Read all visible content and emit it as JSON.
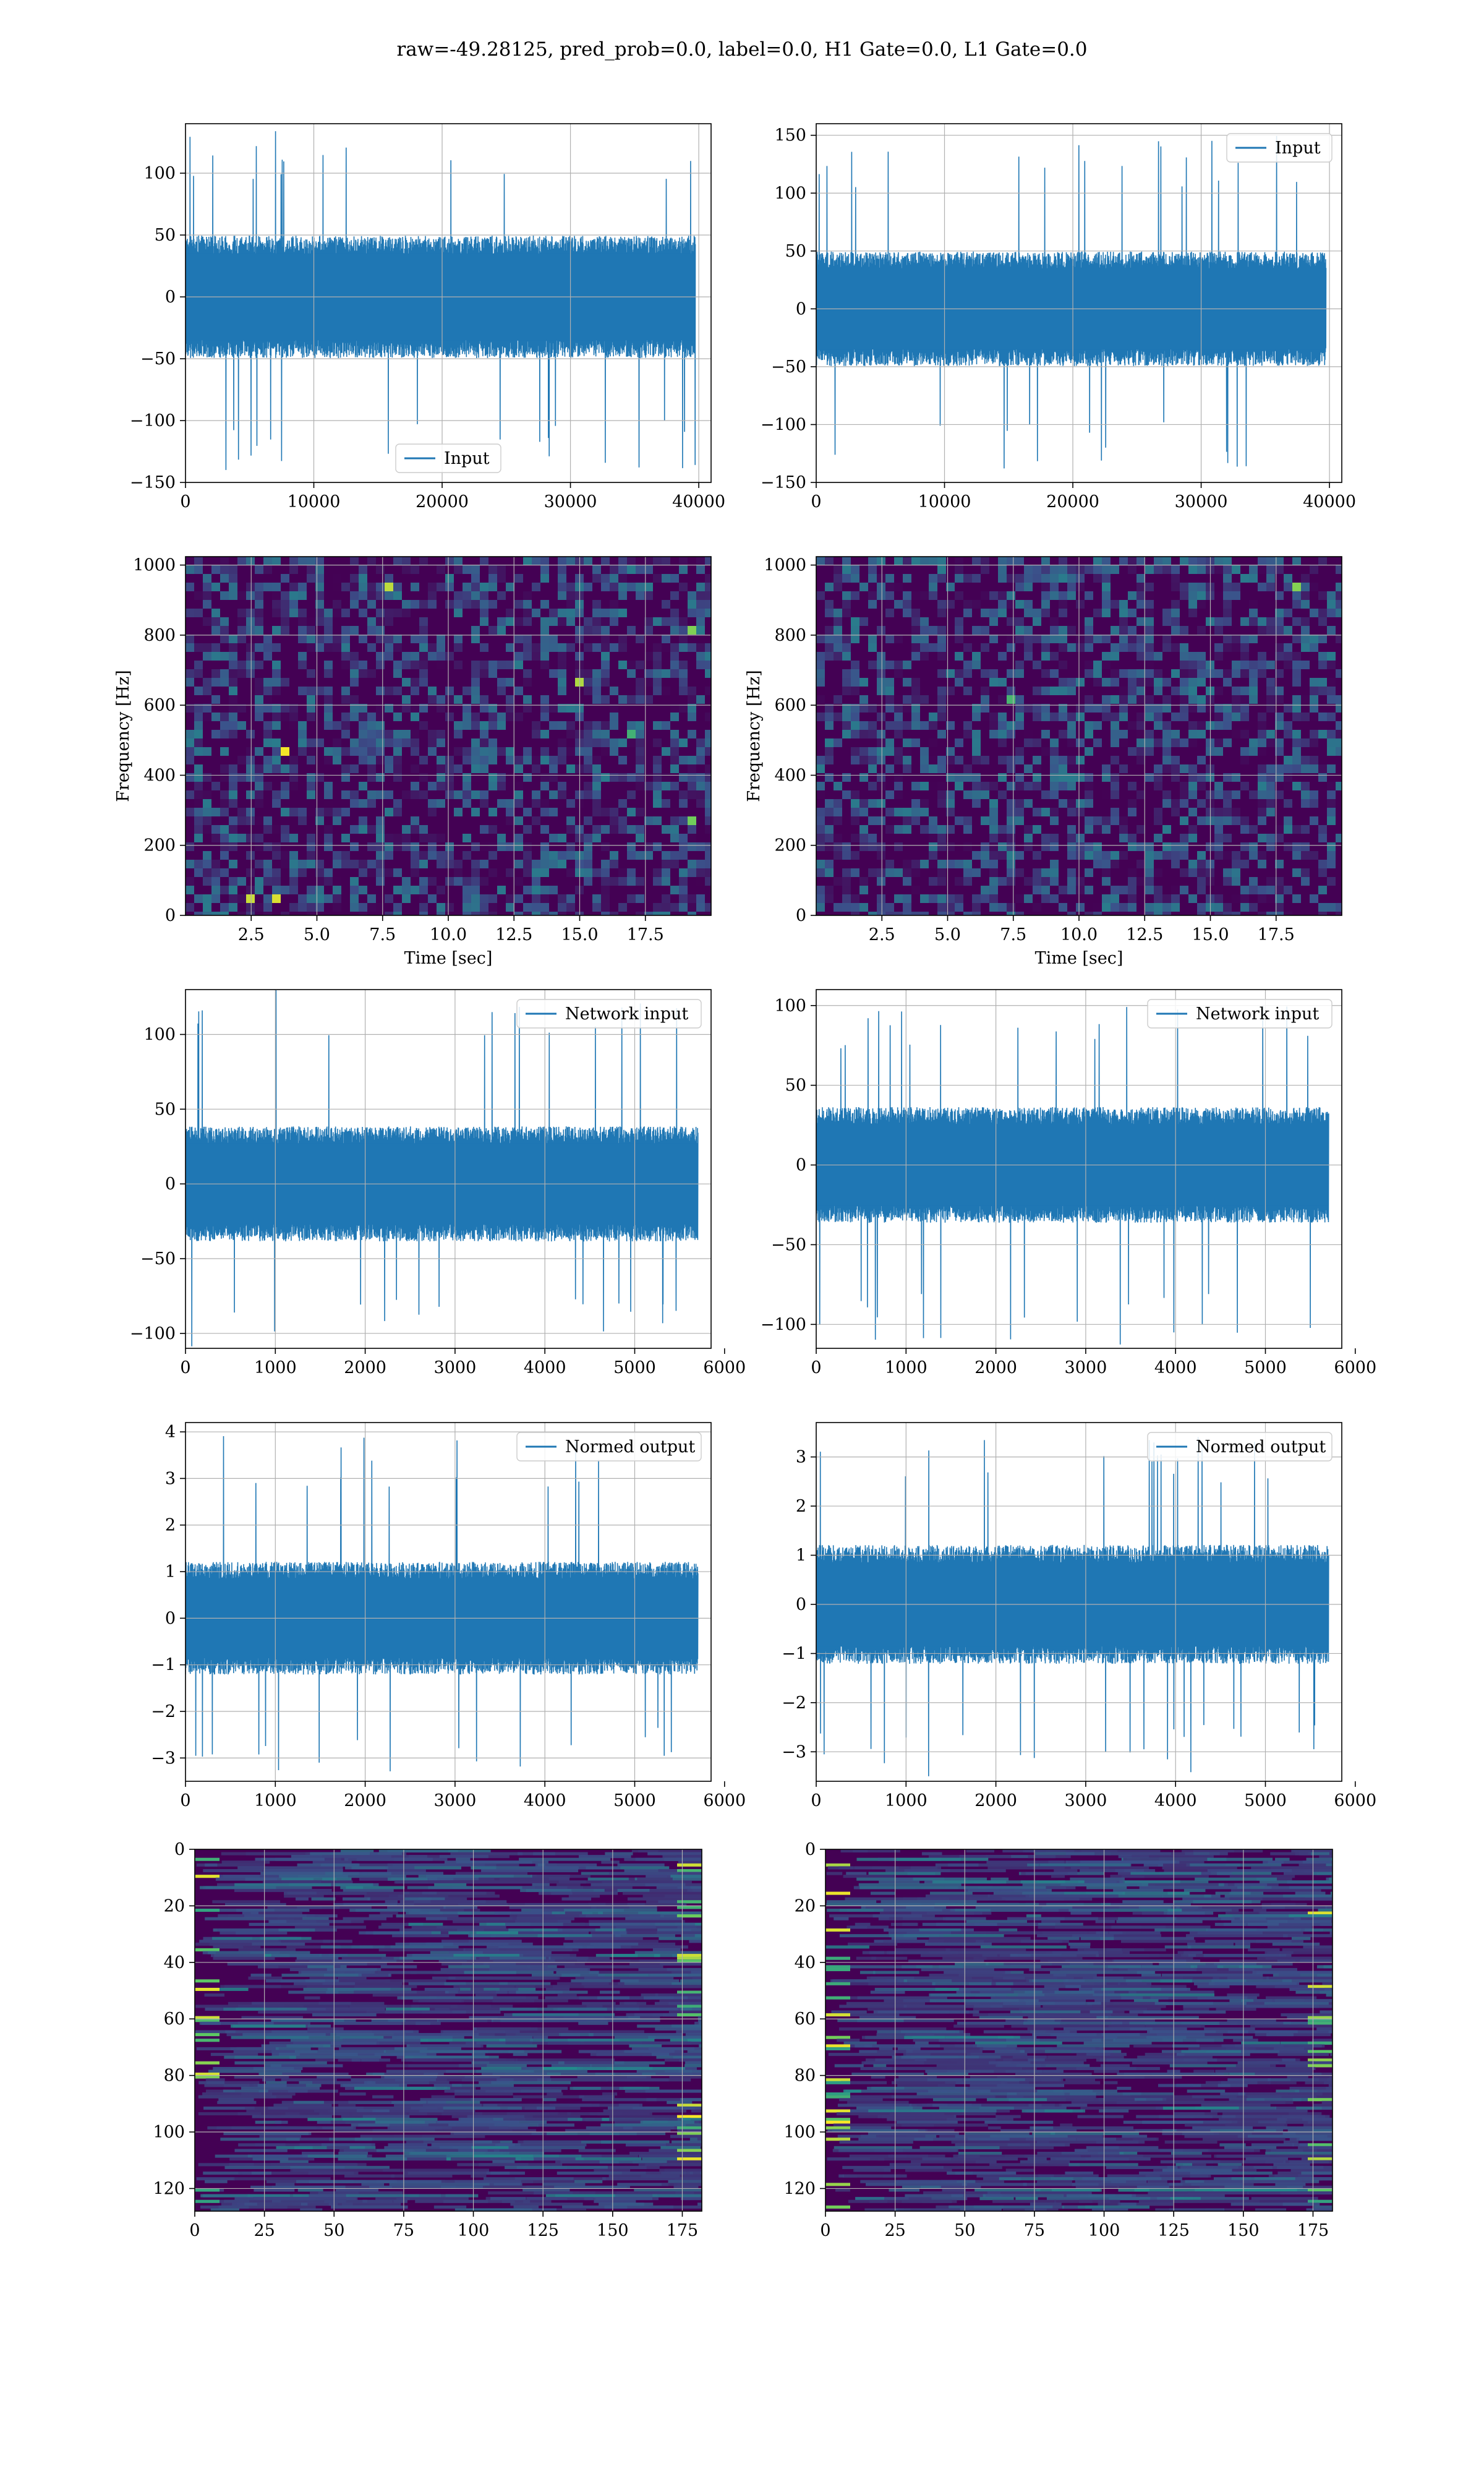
{
  "figure": {
    "suptitle": "raw=-49.28125, pred_prob=0.0, label=0.0, H1 Gate=0.0, L1 Gate=0.0",
    "colors": {
      "line": "#1f77b4",
      "grid": "#b0b0b0",
      "viridis_low": "#440154",
      "viridis_mid": "#21918c",
      "viridis_high": "#fde725"
    }
  },
  "chart_data": [
    {
      "id": "r1c1",
      "type": "line",
      "series": [
        {
          "name": "Input"
        }
      ],
      "legend": "lower center",
      "xlim": [
        0,
        40960
      ],
      "ylim": [
        -150,
        140
      ],
      "xticks": [
        0,
        10000,
        20000,
        30000,
        40000
      ],
      "yticks": [
        -150,
        -100,
        -50,
        0,
        50,
        100
      ],
      "xticklabels": [
        "0",
        "10000",
        "20000",
        "30000",
        "40000"
      ],
      "yticklabels": [
        "−150",
        "−100",
        "−50",
        "0",
        "50",
        "100"
      ],
      "xlabel": "",
      "ylabel": "",
      "amp": {
        "base": 45,
        "peak": 135,
        "min": -140
      }
    },
    {
      "id": "r1c2",
      "type": "line",
      "series": [
        {
          "name": "Input"
        }
      ],
      "legend": "upper right",
      "xlim": [
        0,
        40960
      ],
      "ylim": [
        -150,
        160
      ],
      "xticks": [
        0,
        10000,
        20000,
        30000,
        40000
      ],
      "yticks": [
        -150,
        -100,
        -50,
        0,
        50,
        100,
        150
      ],
      "xticklabels": [
        "0",
        "10000",
        "20000",
        "30000",
        "40000"
      ],
      "yticklabels": [
        "−150",
        "−100",
        "−50",
        "0",
        "50",
        "100",
        "150"
      ],
      "xlabel": "",
      "ylabel": "",
      "amp": {
        "base": 45,
        "peak": 150,
        "min": -140
      }
    },
    {
      "id": "r2c1",
      "type": "heatmap",
      "legend": "",
      "xlim": [
        0,
        20
      ],
      "ylim": [
        0,
        1024
      ],
      "xticks": [
        2.5,
        5.0,
        7.5,
        10.0,
        12.5,
        15.0,
        17.5
      ],
      "yticks": [
        0,
        200,
        400,
        600,
        800,
        1000
      ],
      "xticklabels": [
        "2.5",
        "5.0",
        "7.5",
        "10.0",
        "12.5",
        "15.0",
        "17.5"
      ],
      "yticklabels": [
        "0",
        "200",
        "400",
        "600",
        "800",
        "1000"
      ],
      "xlabel": "Time [sec]",
      "ylabel": "Frequency [Hz]"
    },
    {
      "id": "r2c2",
      "type": "heatmap",
      "legend": "",
      "xlim": [
        0,
        20
      ],
      "ylim": [
        0,
        1024
      ],
      "xticks": [
        2.5,
        5.0,
        7.5,
        10.0,
        12.5,
        15.0,
        17.5
      ],
      "yticks": [
        0,
        200,
        400,
        600,
        800,
        1000
      ],
      "xticklabels": [
        "2.5",
        "5.0",
        "7.5",
        "10.0",
        "12.5",
        "15.0",
        "17.5"
      ],
      "yticklabels": [
        "0",
        "200",
        "400",
        "600",
        "800",
        "1000"
      ],
      "xlabel": "Time [sec]",
      "ylabel": "Frequency [Hz]"
    },
    {
      "id": "r3c1",
      "type": "line",
      "series": [
        {
          "name": "Network input"
        }
      ],
      "legend": "upper right",
      "xlim": [
        0,
        5850
      ],
      "ylim": [
        -110,
        130
      ],
      "xticks": [
        0,
        1000,
        2000,
        3000,
        4000,
        5000,
        6000
      ],
      "yticks": [
        -100,
        -50,
        0,
        50,
        100
      ],
      "xticklabels": [
        "0",
        "1000",
        "2000",
        "3000",
        "4000",
        "5000",
        "6000"
      ],
      "yticklabels": [
        "−100",
        "−50",
        "0",
        "50",
        "100"
      ],
      "xlabel": "",
      "ylabel": "",
      "amp": {
        "base": 35,
        "peak": 130,
        "min": -110
      }
    },
    {
      "id": "r3c2",
      "type": "line",
      "series": [
        {
          "name": "Network input"
        }
      ],
      "legend": "upper right",
      "xlim": [
        0,
        5850
      ],
      "ylim": [
        -115,
        110
      ],
      "xticks": [
        0,
        1000,
        2000,
        3000,
        4000,
        5000,
        6000
      ],
      "yticks": [
        -100,
        -50,
        0,
        50,
        100
      ],
      "xticklabels": [
        "0",
        "1000",
        "2000",
        "3000",
        "4000",
        "5000",
        "6000"
      ],
      "yticklabels": [
        "−100",
        "−50",
        "0",
        "50",
        "100"
      ],
      "xlabel": "",
      "ylabel": "",
      "amp": {
        "base": 33,
        "peak": 100,
        "min": -115
      }
    },
    {
      "id": "r4c1",
      "type": "line",
      "series": [
        {
          "name": "Normed output"
        }
      ],
      "legend": "upper right",
      "xlim": [
        0,
        5850
      ],
      "ylim": [
        -3.5,
        4.2
      ],
      "xticks": [
        0,
        1000,
        2000,
        3000,
        4000,
        5000,
        6000
      ],
      "yticks": [
        -3,
        -2,
        -1,
        0,
        1,
        2,
        3,
        4
      ],
      "xticklabels": [
        "0",
        "1000",
        "2000",
        "3000",
        "4000",
        "5000",
        "6000"
      ],
      "yticklabels": [
        "−3",
        "−2",
        "−1",
        "0",
        "1",
        "2",
        "3",
        "4"
      ],
      "xlabel": "",
      "ylabel": "",
      "amp": {
        "base": 1.1,
        "peak": 4.0,
        "min": -3.3
      }
    },
    {
      "id": "r4c2",
      "type": "line",
      "series": [
        {
          "name": "Normed output"
        }
      ],
      "legend": "upper right",
      "xlim": [
        0,
        5850
      ],
      "ylim": [
        -3.6,
        3.7
      ],
      "xticks": [
        0,
        1000,
        2000,
        3000,
        4000,
        5000,
        6000
      ],
      "yticks": [
        -3,
        -2,
        -1,
        0,
        1,
        2,
        3
      ],
      "xticklabels": [
        "0",
        "1000",
        "2000",
        "3000",
        "4000",
        "5000",
        "6000"
      ],
      "yticklabels": [
        "−3",
        "−2",
        "−1",
        "0",
        "1",
        "2",
        "3"
      ],
      "xlabel": "",
      "ylabel": "",
      "amp": {
        "base": 1.1,
        "peak": 3.5,
        "min": -3.5
      }
    },
    {
      "id": "r5c1",
      "type": "heatmap",
      "legend": "",
      "xlim": [
        0,
        182
      ],
      "ylim": [
        128,
        0
      ],
      "xticks": [
        0,
        25,
        50,
        75,
        100,
        125,
        150,
        175
      ],
      "yticks": [
        0,
        20,
        40,
        60,
        80,
        100,
        120
      ],
      "xticklabels": [
        "0",
        "25",
        "50",
        "75",
        "100",
        "125",
        "150",
        "175"
      ],
      "yticklabels": [
        "0",
        "20",
        "40",
        "60",
        "80",
        "100",
        "120"
      ],
      "xlabel": "",
      "ylabel": ""
    },
    {
      "id": "r5c2",
      "type": "heatmap",
      "legend": "",
      "xlim": [
        0,
        182
      ],
      "ylim": [
        128,
        0
      ],
      "xticks": [
        0,
        25,
        50,
        75,
        100,
        125,
        150,
        175
      ],
      "yticks": [
        0,
        20,
        40,
        60,
        80,
        100,
        120
      ],
      "xticklabels": [
        "0",
        "25",
        "50",
        "75",
        "100",
        "125",
        "150",
        "175"
      ],
      "yticklabels": [
        "0",
        "20",
        "40",
        "60",
        "80",
        "100",
        "120"
      ],
      "xlabel": "",
      "ylabel": ""
    }
  ]
}
